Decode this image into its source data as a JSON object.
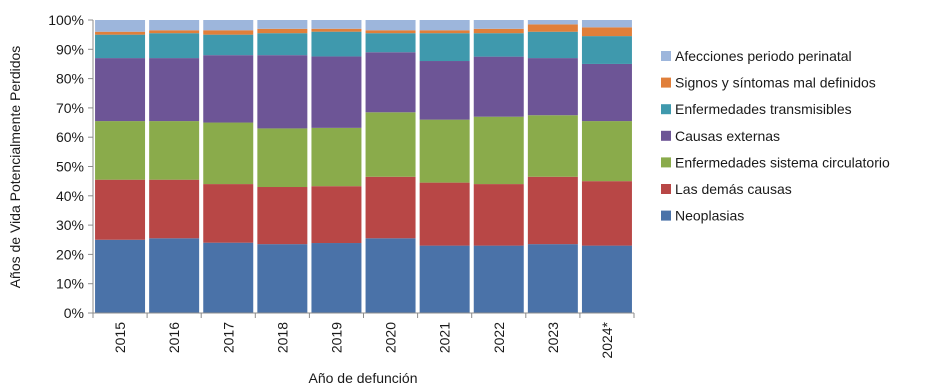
{
  "chart_data": {
    "type": "bar",
    "stacked": true,
    "percent": true,
    "xlabel": "Año de defunción",
    "ylabel": "Años de Vida Potencialmente Perdidos",
    "ylim": [
      0,
      100
    ],
    "yticks": [
      "0%",
      "10%",
      "20%",
      "30%",
      "40%",
      "50%",
      "60%",
      "70%",
      "80%",
      "90%",
      "100%"
    ],
    "categories": [
      "2015",
      "2016",
      "2017",
      "2018",
      "2019",
      "2020",
      "2021",
      "2022",
      "2023",
      "2024*"
    ],
    "legend_position": "right",
    "series": [
      {
        "name": "Neoplasias",
        "color": "#4a72a8",
        "values": [
          25,
          25.5,
          24,
          23.5,
          24,
          25.5,
          23,
          23,
          23.5,
          23
        ]
      },
      {
        "name": "Las demás causas",
        "color": "#b84746",
        "values": [
          20.5,
          20,
          20,
          19.5,
          19.5,
          21,
          21.5,
          21,
          23,
          22
        ]
      },
      {
        "name": "Enfermedades sistema circulatorio",
        "color": "#8aab4b",
        "values": [
          20,
          20,
          21,
          20,
          20,
          22,
          21.5,
          23,
          21,
          20.5
        ]
      },
      {
        "name": "Causas externas",
        "color": "#6d5596",
        "values": [
          21.5,
          21.5,
          23,
          25,
          24.5,
          20.5,
          20,
          20.5,
          19.5,
          19.5
        ]
      },
      {
        "name": "Enfermedades transmisibles",
        "color": "#3f99ad",
        "values": [
          8,
          8.5,
          7,
          7.5,
          8.5,
          6.5,
          9.5,
          8,
          9,
          9.5
        ]
      },
      {
        "name": "Signos y síntomas mal definidos",
        "color": "#e07f3a",
        "values": [
          1,
          1,
          1.5,
          1.5,
          1,
          1,
          1,
          1.5,
          2.5,
          3
        ]
      },
      {
        "name": "Afecciones periodo perinatal",
        "color": "#9db6dc",
        "values": [
          4,
          3.5,
          3.5,
          3,
          3,
          3.5,
          3.5,
          3,
          1.5,
          2.5
        ]
      }
    ]
  }
}
